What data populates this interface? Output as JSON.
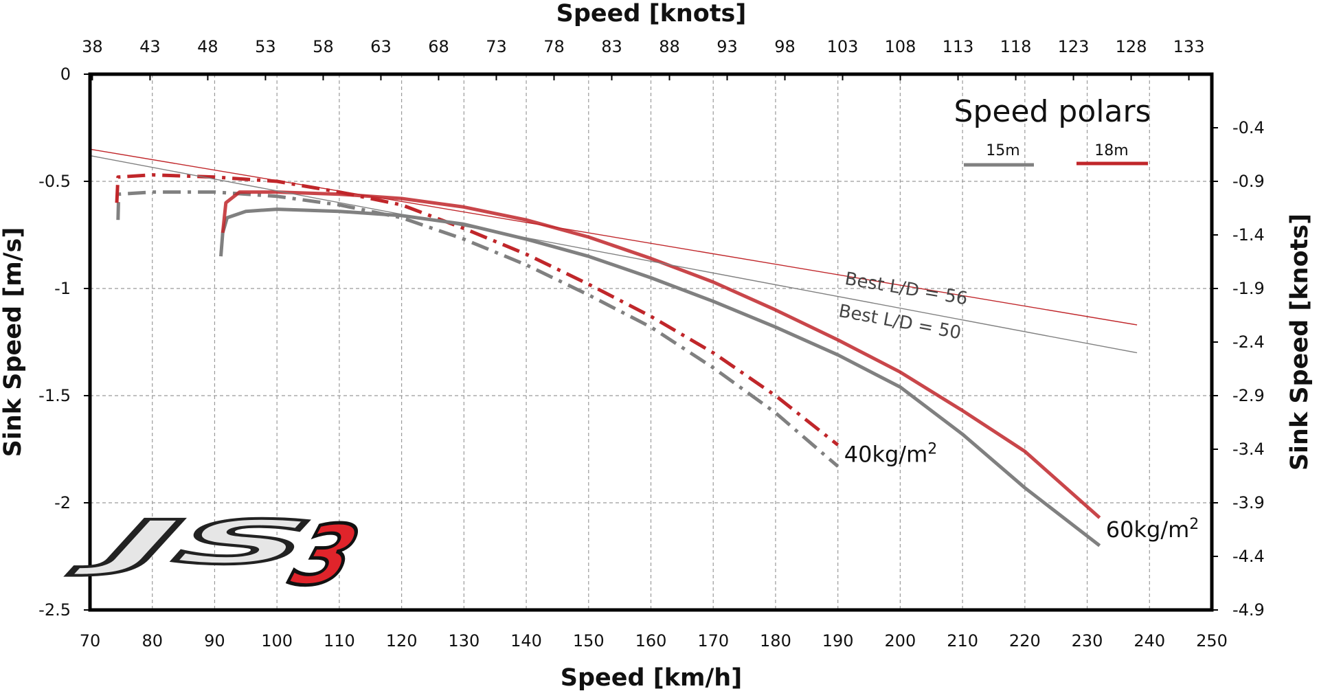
{
  "chart_data": {
    "type": "line",
    "title": "Speed polars",
    "xlabel": "Speed [km/h]",
    "x2label": "Speed [knots]",
    "ylabel": "Sink Speed [m/s]",
    "y2label": "Sink Speed [knots]",
    "xlim": [
      70,
      250
    ],
    "ylim": [
      -2.5,
      0
    ],
    "x_ticks": [
      "70",
      "80",
      "90",
      "100",
      "110",
      "120",
      "130",
      "140",
      "150",
      "160",
      "170",
      "180",
      "190",
      "200",
      "210",
      "220",
      "230",
      "240",
      "250"
    ],
    "y_ticks": [
      "0",
      "-0.5",
      "-1",
      "-1.5",
      "-2",
      "-2.5"
    ],
    "x2_ticks": [
      "38",
      "43",
      "48",
      "53",
      "58",
      "63",
      "68",
      "73",
      "78",
      "83",
      "88",
      "93",
      "98",
      "103",
      "108",
      "113",
      "118",
      "123",
      "128",
      "133"
    ],
    "y2_ticks": [
      "-0.4",
      "-0.9",
      "-1.4",
      "-1.9",
      "-2.4",
      "-2.9",
      "-3.4",
      "-3.9",
      "-4.4",
      "-4.9"
    ],
    "legend": {
      "title": "Speed polars",
      "position": "top-right",
      "entries": [
        {
          "label": "15m",
          "color": "#808080"
        },
        {
          "label": "18m",
          "color": "#c0262a"
        }
      ]
    },
    "series": [
      {
        "name": "15m 40kg/m2",
        "span": "15m",
        "loading": "40kg/m2",
        "style": "dash-dot",
        "color": "#808080",
        "points": [
          [
            74.5,
            -0.68
          ],
          [
            74.6,
            -0.56
          ],
          [
            80,
            -0.55
          ],
          [
            90,
            -0.55
          ],
          [
            100,
            -0.57
          ],
          [
            110,
            -0.61
          ],
          [
            120,
            -0.67
          ],
          [
            130,
            -0.77
          ],
          [
            140,
            -0.89
          ],
          [
            150,
            -1.03
          ],
          [
            160,
            -1.18
          ],
          [
            170,
            -1.37
          ],
          [
            180,
            -1.58
          ],
          [
            190,
            -1.83
          ]
        ]
      },
      {
        "name": "18m 40kg/m2",
        "span": "18m",
        "loading": "40kg/m2",
        "style": "dash-dot",
        "color": "#c0262a",
        "points": [
          [
            74.3,
            -0.6
          ],
          [
            74.5,
            -0.48
          ],
          [
            80,
            -0.47
          ],
          [
            90,
            -0.48
          ],
          [
            100,
            -0.5
          ],
          [
            110,
            -0.55
          ],
          [
            120,
            -0.61
          ],
          [
            130,
            -0.72
          ],
          [
            140,
            -0.84
          ],
          [
            150,
            -0.98
          ],
          [
            160,
            -1.13
          ],
          [
            170,
            -1.3
          ],
          [
            180,
            -1.5
          ],
          [
            190,
            -1.73
          ]
        ]
      },
      {
        "name": "15m 60kg/m2",
        "span": "15m",
        "loading": "60kg/m2",
        "style": "solid",
        "color": "#808080",
        "points": [
          [
            91,
            -0.85
          ],
          [
            91.3,
            -0.74
          ],
          [
            92,
            -0.67
          ],
          [
            95,
            -0.64
          ],
          [
            100,
            -0.63
          ],
          [
            110,
            -0.64
          ],
          [
            120,
            -0.66
          ],
          [
            130,
            -0.7
          ],
          [
            140,
            -0.77
          ],
          [
            150,
            -0.85
          ],
          [
            160,
            -0.95
          ],
          [
            170,
            -1.06
          ],
          [
            180,
            -1.18
          ],
          [
            190,
            -1.31
          ],
          [
            200,
            -1.46
          ],
          [
            210,
            -1.68
          ],
          [
            220,
            -1.93
          ],
          [
            232,
            -2.2
          ]
        ]
      },
      {
        "name": "18m 60kg/m2",
        "span": "18m",
        "loading": "60kg/m2",
        "style": "solid",
        "color": "#c0262a",
        "points": [
          [
            91.3,
            -0.74
          ],
          [
            91.8,
            -0.6
          ],
          [
            94,
            -0.55
          ],
          [
            100,
            -0.55
          ],
          [
            110,
            -0.56
          ],
          [
            120,
            -0.58
          ],
          [
            130,
            -0.62
          ],
          [
            140,
            -0.68
          ],
          [
            150,
            -0.76
          ],
          [
            160,
            -0.86
          ],
          [
            170,
            -0.97
          ],
          [
            180,
            -1.1
          ],
          [
            190,
            -1.24
          ],
          [
            200,
            -1.39
          ],
          [
            210,
            -1.57
          ],
          [
            220,
            -1.76
          ],
          [
            232,
            -2.07
          ]
        ]
      },
      {
        "name": "Best L/D = 56",
        "style": "thin",
        "color": "#c0262a",
        "points": [
          [
            70,
            -0.35
          ],
          [
            238,
            -1.17
          ]
        ]
      },
      {
        "name": "Best L/D = 50",
        "style": "thin",
        "color": "#808080",
        "points": [
          [
            70,
            -0.38
          ],
          [
            238,
            -1.3
          ]
        ]
      }
    ],
    "annotations": {
      "ld56": {
        "label": "Best L/D = 56",
        "x": 191,
        "y": -0.98
      },
      "ld50": {
        "label": "Best L/D = 50",
        "x": 190,
        "y": -1.13
      },
      "w40": {
        "label": "40kg/m",
        "sup": "2",
        "x": 191,
        "y": -1.81
      },
      "w60": {
        "label": "60kg/m",
        "sup": "2",
        "x": 233,
        "y": -2.16
      }
    },
    "logo": {
      "text": "JS",
      "number": "3",
      "number_color": "#e0242b"
    }
  }
}
